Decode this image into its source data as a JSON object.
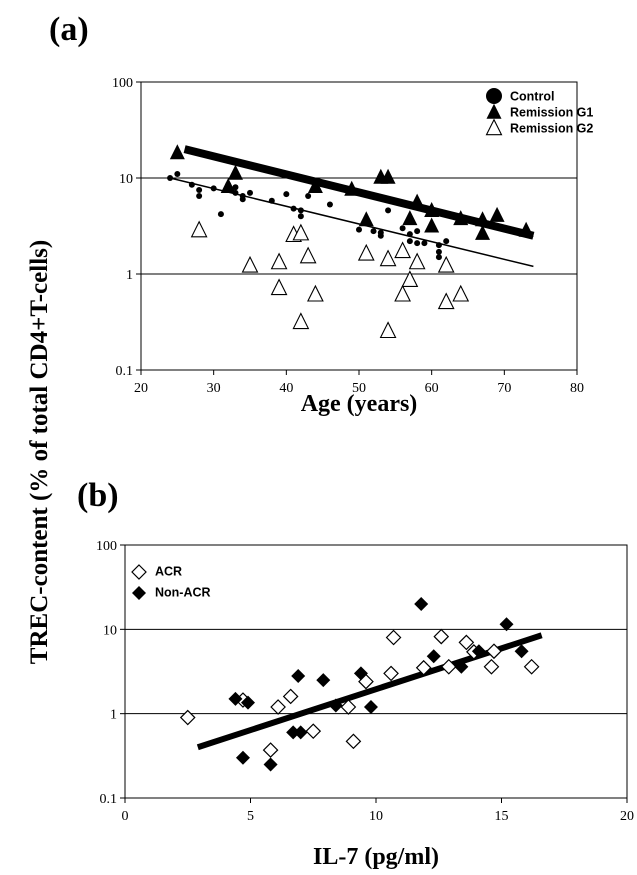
{
  "figure": {
    "shared_ylabel": "TREC-content (% of total CD4+T-cells)",
    "colors": {
      "ink": "#000000",
      "background": "#ffffff"
    }
  },
  "chart_data": [
    {
      "panel_label": "(a)",
      "type": "scatter",
      "xlabel": "Age (years)",
      "x_ticks": [
        "20",
        "30",
        "40",
        "50",
        "60",
        "70",
        "80"
      ],
      "y_ticks": [
        "0.1",
        "1",
        "10",
        "100"
      ],
      "xlim": [
        20,
        80
      ],
      "ylim": [
        0.1,
        100
      ],
      "y_scale": "log",
      "horizontal_gridlines": [
        1,
        10,
        100
      ],
      "legend_placement": "top-right",
      "legend": [
        "Control",
        "Remission G1",
        "Remission G2"
      ],
      "series": [
        {
          "name": "Control",
          "marker": "filled-circle",
          "points": [
            [
              24,
              10
            ],
            [
              25,
              11
            ],
            [
              27,
              8.5
            ],
            [
              28,
              6.5
            ],
            [
              28,
              7.5
            ],
            [
              30,
              7.8
            ],
            [
              31,
              4.2
            ],
            [
              32,
              7.5
            ],
            [
              32,
              8.5
            ],
            [
              33,
              7
            ],
            [
              33,
              8
            ],
            [
              34,
              6
            ],
            [
              34,
              6.5
            ],
            [
              35,
              7
            ],
            [
              38,
              5.8
            ],
            [
              40,
              6.8
            ],
            [
              41,
              4.8
            ],
            [
              42,
              4
            ],
            [
              42,
              4.6
            ],
            [
              43,
              6.5
            ],
            [
              46,
              5.3
            ],
            [
              50,
              2.9
            ],
            [
              52,
              2.8
            ],
            [
              53,
              2.5
            ],
            [
              53,
              2.7
            ],
            [
              54,
              4.6
            ],
            [
              56,
              3
            ],
            [
              57,
              2.2
            ],
            [
              57,
              2.6
            ],
            [
              58,
              2.1
            ],
            [
              58,
              2.8
            ],
            [
              59,
              2.1
            ],
            [
              61,
              1.5
            ],
            [
              61,
              1.7
            ],
            [
              61,
              2
            ],
            [
              62,
              2.2
            ]
          ]
        },
        {
          "name": "Remission G1",
          "marker": "filled-triangle",
          "points": [
            [
              25,
              18
            ],
            [
              32,
              8
            ],
            [
              33,
              11
            ],
            [
              44,
              8
            ],
            [
              49,
              7.5
            ],
            [
              51,
              3.6
            ],
            [
              53,
              10
            ],
            [
              54,
              10
            ],
            [
              57,
              3.7
            ],
            [
              58,
              5.5
            ],
            [
              60,
              4.5
            ],
            [
              60,
              3.1
            ],
            [
              64,
              3.7
            ],
            [
              67,
              3.6
            ],
            [
              67,
              2.6
            ],
            [
              69,
              4
            ],
            [
              73,
              2.8
            ]
          ]
        },
        {
          "name": "Remission G2",
          "marker": "open-triangle",
          "points": [
            [
              28,
              2.8
            ],
            [
              35,
              1.2
            ],
            [
              39,
              1.3
            ],
            [
              39,
              0.7
            ],
            [
              41,
              2.5
            ],
            [
              42,
              2.6
            ],
            [
              42,
              0.31
            ],
            [
              43,
              1.5
            ],
            [
              44,
              0.6
            ],
            [
              51,
              1.6
            ],
            [
              54,
              1.4
            ],
            [
              54,
              0.25
            ],
            [
              56,
              0.6
            ],
            [
              56,
              1.7
            ],
            [
              57,
              0.85
            ],
            [
              58,
              1.3
            ],
            [
              62,
              0.5
            ],
            [
              62,
              1.2
            ],
            [
              64,
              0.6
            ]
          ]
        }
      ],
      "trendlines": [
        {
          "series": "Remission G1",
          "x": [
            26,
            74
          ],
          "y": [
            20,
            2.5
          ]
        },
        {
          "series": "Control",
          "x": [
            24,
            74
          ],
          "y": [
            10,
            1.2
          ]
        }
      ]
    },
    {
      "panel_label": "(b)",
      "type": "scatter",
      "xlabel": "IL-7  (pg/ml)",
      "x_ticks": [
        "0",
        "5",
        "10",
        "15",
        "20"
      ],
      "y_ticks": [
        "0.1",
        "1",
        "10",
        "100"
      ],
      "xlim": [
        0,
        20
      ],
      "ylim": [
        0.1,
        100
      ],
      "y_scale": "log",
      "horizontal_gridlines": [
        1,
        10,
        100
      ],
      "legend_placement": "top-left",
      "legend": [
        "ACR",
        "Non-ACR"
      ],
      "series": [
        {
          "name": "ACR",
          "marker": "open-diamond",
          "points": [
            [
              2.5,
              0.9
            ],
            [
              4.7,
              1.45
            ],
            [
              5.8,
              0.37
            ],
            [
              6.1,
              1.2
            ],
            [
              6.6,
              1.6
            ],
            [
              7.5,
              0.62
            ],
            [
              8.9,
              1.2
            ],
            [
              9.1,
              0.47
            ],
            [
              9.6,
              2.4
            ],
            [
              10.6,
              3
            ],
            [
              10.7,
              8
            ],
            [
              11.9,
              3.5
            ],
            [
              12.6,
              8.2
            ],
            [
              12.9,
              3.6
            ],
            [
              13.6,
              7
            ],
            [
              13.9,
              5.4
            ],
            [
              14.6,
              3.6
            ],
            [
              14.7,
              5.5
            ],
            [
              16.2,
              3.6
            ]
          ]
        },
        {
          "name": "Non-ACR",
          "marker": "filled-diamond",
          "points": [
            [
              4.4,
              1.5
            ],
            [
              4.7,
              0.3
            ],
            [
              4.9,
              1.35
            ],
            [
              5.8,
              0.25
            ],
            [
              6.7,
              0.6
            ],
            [
              6.9,
              2.8
            ],
            [
              7.0,
              0.6
            ],
            [
              7.9,
              2.5
            ],
            [
              8.4,
              1.25
            ],
            [
              9.4,
              3
            ],
            [
              9.8,
              1.2
            ],
            [
              11.8,
              20
            ],
            [
              12.3,
              4.8
            ],
            [
              13.4,
              3.6
            ],
            [
              14.1,
              5.5
            ],
            [
              15.2,
              11.5
            ],
            [
              15.8,
              5.5
            ]
          ]
        }
      ],
      "trendlines": [
        {
          "series": "all",
          "x": [
            2.9,
            16.6
          ],
          "y": [
            0.4,
            8.5
          ]
        }
      ]
    }
  ]
}
